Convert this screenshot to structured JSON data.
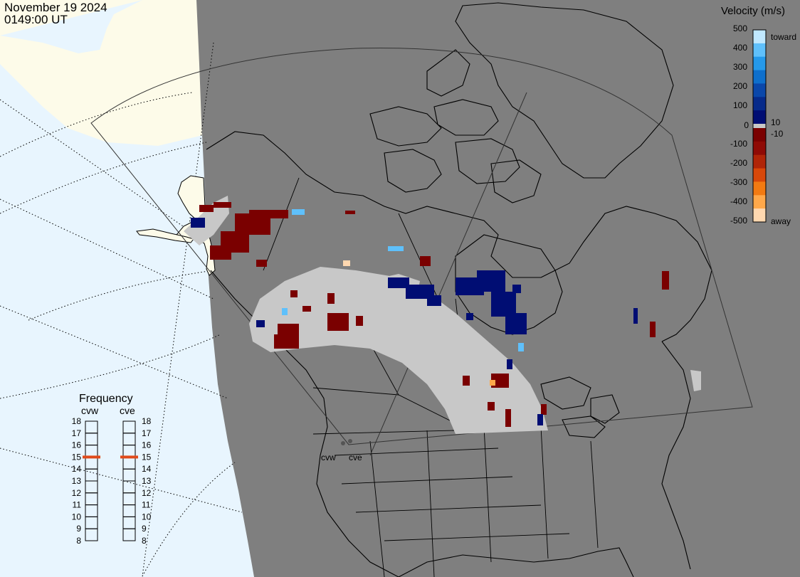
{
  "header": {
    "date": "November 19 2024",
    "time": "0149:00 UT"
  },
  "colors": {
    "sky": "#e8f5fe",
    "land_day": "#fdfbe9",
    "night": "#7f7f7f",
    "ground_scatter": "#c8c8c8",
    "coastline": "#000000"
  },
  "velocity_scale": {
    "title": "Velocity (m/s)",
    "ticks": [
      "500",
      "400",
      "300",
      "200",
      "100",
      "10",
      "0",
      "-10",
      "-100",
      "-200",
      "-300",
      "-400",
      "-500"
    ],
    "toward_label": "toward",
    "away_label": "away",
    "colors_toward": [
      "#c0e8ff",
      "#5fc0fb",
      "#2599ea",
      "#0e6fcc",
      "#0a47aa",
      "#062a8a",
      "#000d73"
    ],
    "colors_away": [
      "#7a0000",
      "#8f0a05",
      "#b02508",
      "#d8480a",
      "#f27a12",
      "#ffa84a",
      "#ffd8b0"
    ]
  },
  "frequency": {
    "title": "Frequency",
    "radars": [
      {
        "name": "cvw",
        "value": 15
      },
      {
        "name": "cve",
        "value": 15
      }
    ],
    "ticks": [
      "18",
      "17",
      "16",
      "15",
      "14",
      "13",
      "12",
      "11",
      "10",
      "9",
      "8"
    ]
  },
  "radar_sites": [
    {
      "name": "cvw"
    },
    {
      "name": "cve"
    }
  ]
}
